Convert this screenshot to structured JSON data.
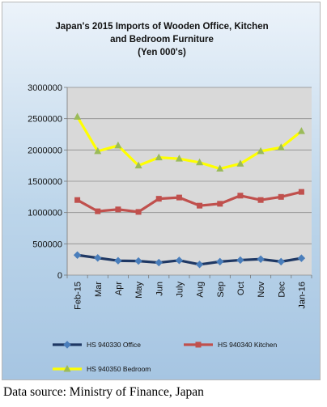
{
  "chart_data": {
    "type": "line",
    "title_lines": [
      "Japan's 2015 Imports of Wooden Office, Kitchen",
      "and Bedroom Furniture",
      "(Yen 000's)"
    ],
    "categories": [
      "Feb-15",
      "Mar",
      "Apr",
      "May",
      "Jun",
      "July",
      "Aug",
      "Sep",
      "Oct",
      "Nov",
      "Dec",
      "Jan-16"
    ],
    "ylim": [
      0,
      3000000
    ],
    "yticks": [
      "0",
      "500000",
      "1000000",
      "1500000",
      "2000000",
      "2500000",
      "3000000"
    ],
    "ytick_values": [
      0,
      500000,
      1000000,
      1500000,
      2000000,
      2500000,
      3000000
    ],
    "grid": "horizontal",
    "legend_position": "bottom",
    "series": [
      {
        "name": "HS 940330 Office",
        "color": "#1f3864",
        "marker": "diamond",
        "values": [
          320000,
          275000,
          230000,
          225000,
          200000,
          235000,
          170000,
          215000,
          240000,
          255000,
          215000,
          270000
        ]
      },
      {
        "name": "HS 940340 Kitchen",
        "color": "#c0504d",
        "marker": "square",
        "values": [
          1200000,
          1020000,
          1050000,
          1010000,
          1220000,
          1240000,
          1110000,
          1140000,
          1270000,
          1200000,
          1250000,
          1330000
        ]
      },
      {
        "name": "HS 940350 Bedroom",
        "color": "#ffff00",
        "marker": "triangle",
        "values": [
          2530000,
          1980000,
          2070000,
          1750000,
          1880000,
          1860000,
          1800000,
          1700000,
          1780000,
          1980000,
          2040000,
          2300000
        ]
      }
    ]
  },
  "source_text": "Data source: Ministry of Finance, Japan"
}
